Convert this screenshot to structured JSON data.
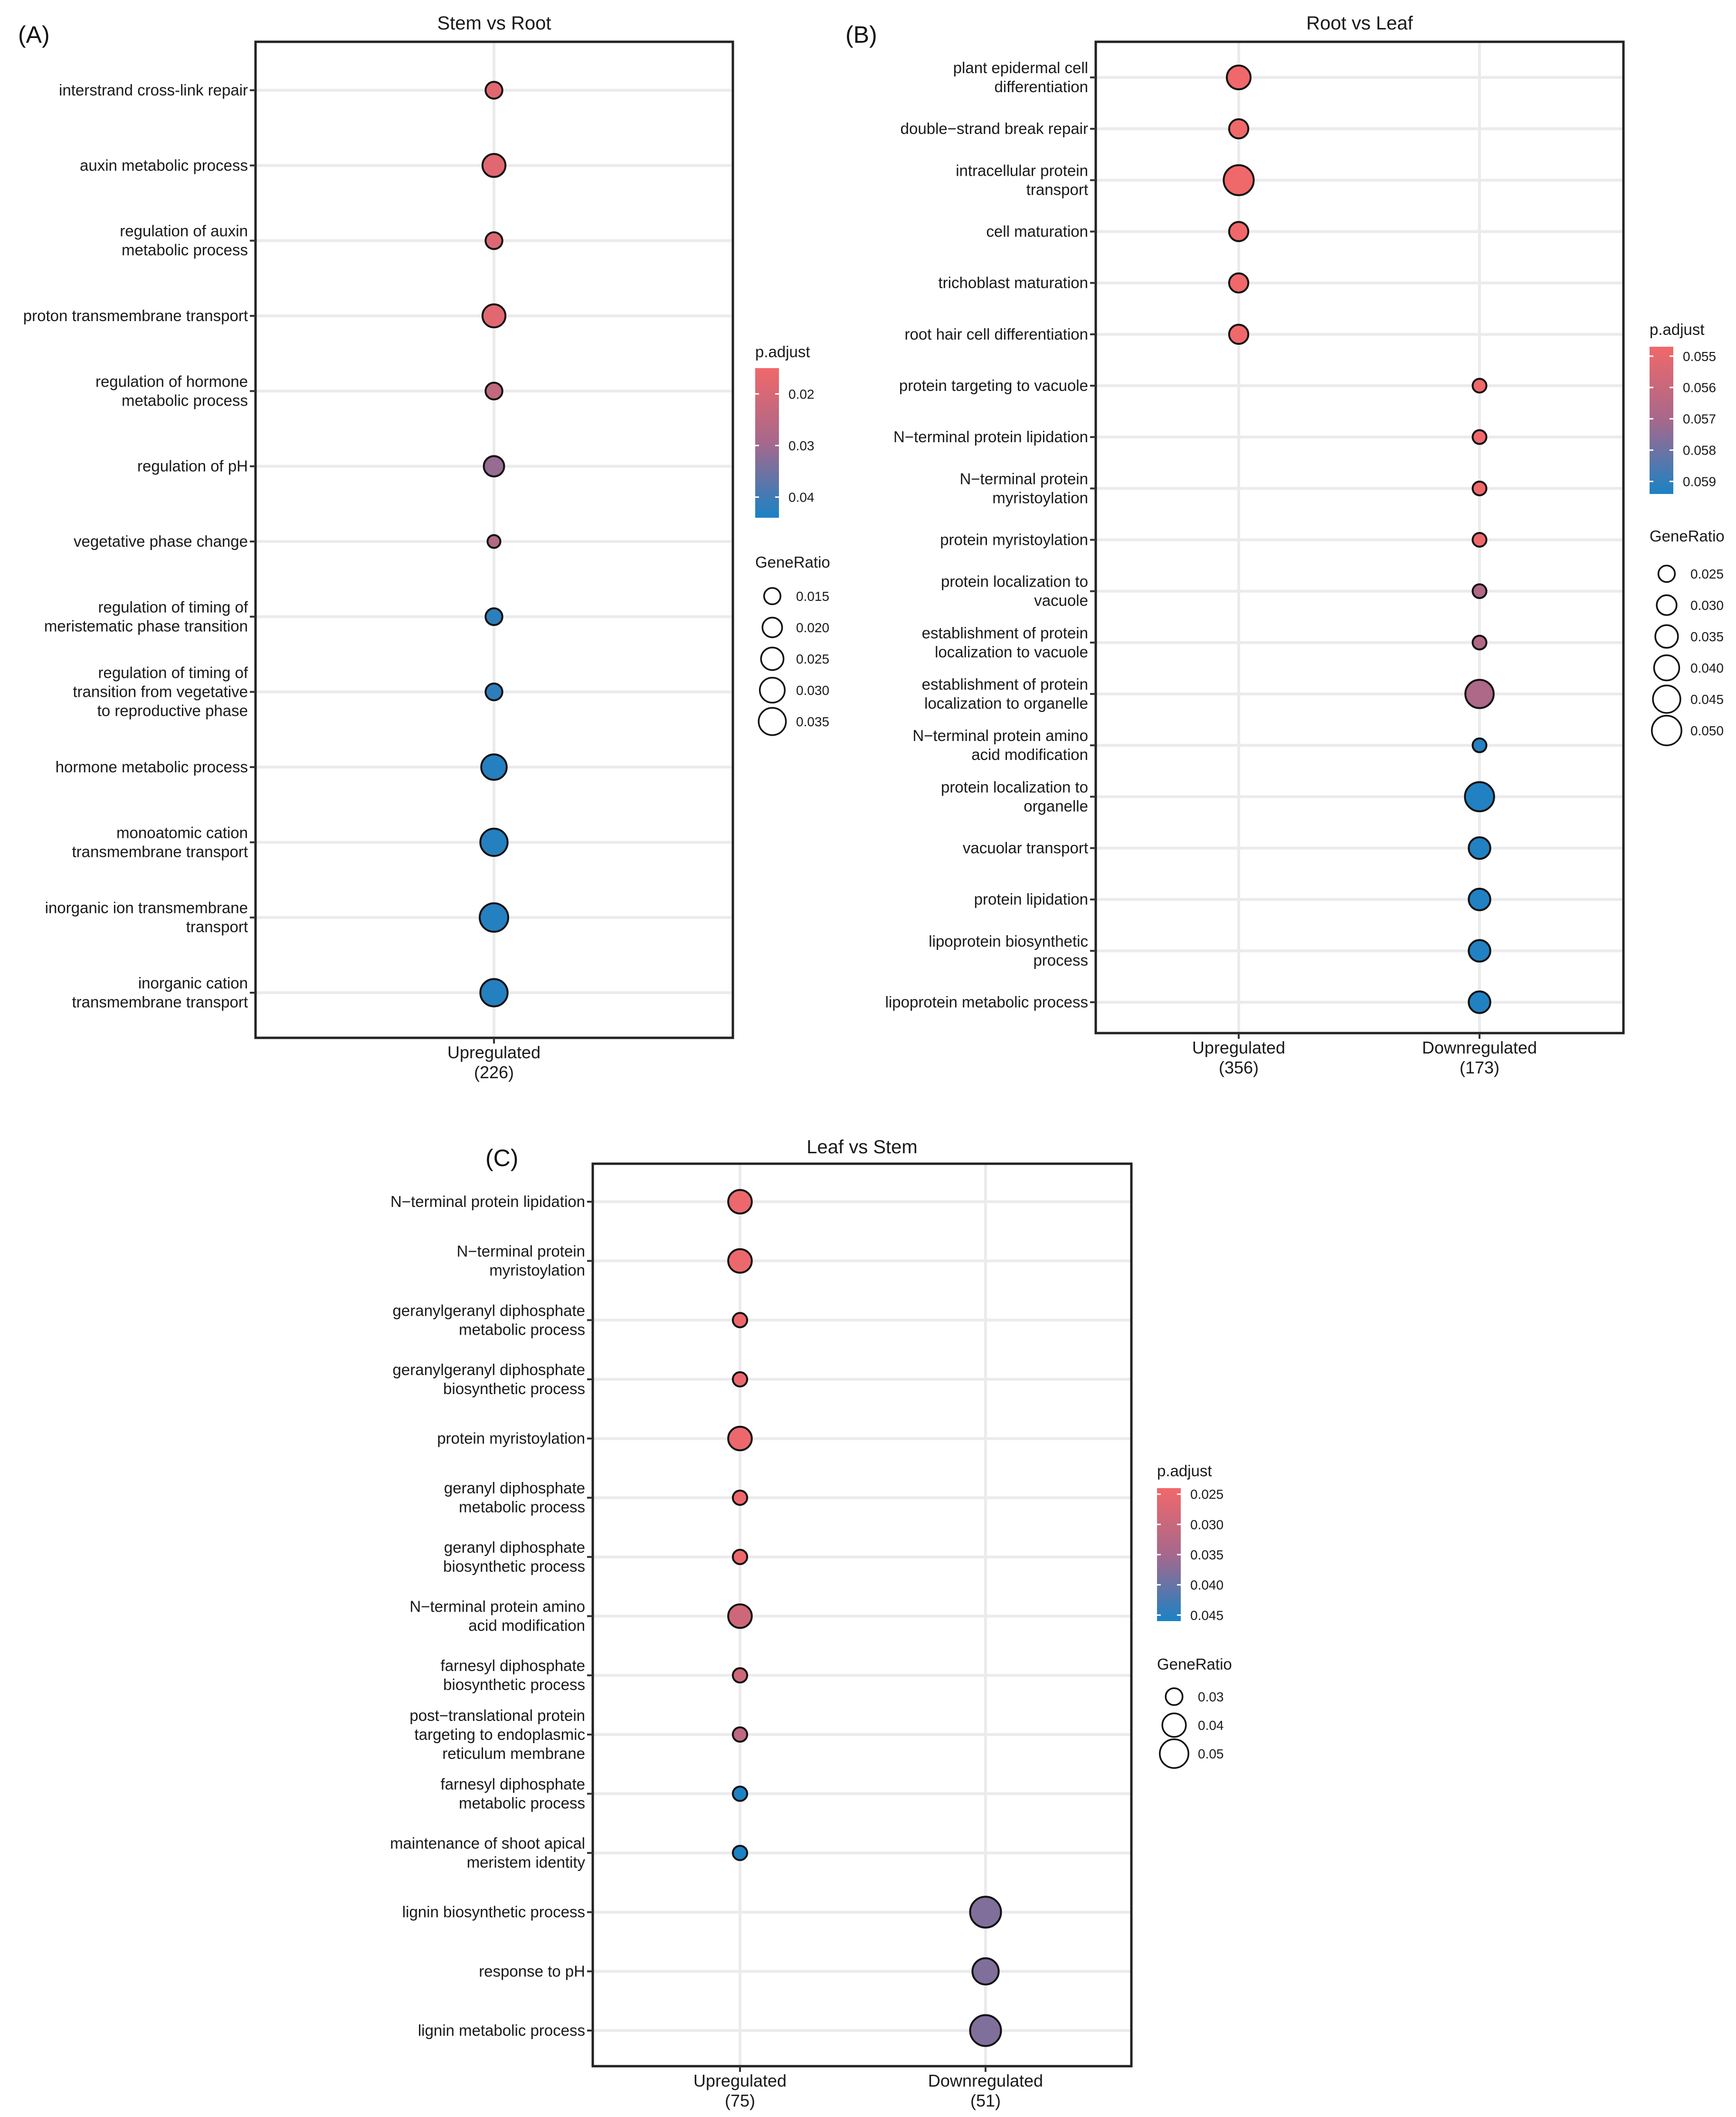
{
  "chart_data": [
    {
      "id": "A",
      "type": "scatter",
      "panel_label": "(A)",
      "title": "Stem vs Root",
      "groups": [
        {
          "name": "Upregulated",
          "count": "(226)"
        }
      ],
      "terms": [
        {
          "label": [
            "interstrand cross-link repair"
          ],
          "group": 0,
          "p_adjust": 0.018,
          "gene_ratio": 0.0155
        },
        {
          "label": [
            "auxin metabolic process"
          ],
          "group": 0,
          "p_adjust": 0.018,
          "gene_ratio": 0.026
        },
        {
          "label": [
            "regulation of auxin",
            "metabolic process"
          ],
          "group": 0,
          "p_adjust": 0.019,
          "gene_ratio": 0.0155
        },
        {
          "label": [
            "proton transmembrane transport"
          ],
          "group": 0,
          "p_adjust": 0.018,
          "gene_ratio": 0.026
        },
        {
          "label": [
            "regulation of hormone",
            "metabolic process"
          ],
          "group": 0,
          "p_adjust": 0.024,
          "gene_ratio": 0.0155
        },
        {
          "label": [
            "regulation of pH"
          ],
          "group": 0,
          "p_adjust": 0.031,
          "gene_ratio": 0.021
        },
        {
          "label": [
            "vegetative phase change"
          ],
          "group": 0,
          "p_adjust": 0.027,
          "gene_ratio": 0.0105
        },
        {
          "label": [
            "regulation of timing of",
            "meristematic phase transition"
          ],
          "group": 0,
          "p_adjust": 0.042,
          "gene_ratio": 0.0155
        },
        {
          "label": [
            "regulation of timing of",
            "transition from vegetative",
            "to reproductive phase"
          ],
          "group": 0,
          "p_adjust": 0.042,
          "gene_ratio": 0.0155
        },
        {
          "label": [
            "hormone metabolic process"
          ],
          "group": 0,
          "p_adjust": 0.043,
          "gene_ratio": 0.031
        },
        {
          "label": [
            "monoatomic cation",
            "transmembrane transport"
          ],
          "group": 0,
          "p_adjust": 0.043,
          "gene_ratio": 0.035
        },
        {
          "label": [
            "inorganic ion transmembrane",
            "transport"
          ],
          "group": 0,
          "p_adjust": 0.043,
          "gene_ratio": 0.038
        },
        {
          "label": [
            "inorganic cation",
            "transmembrane transport"
          ],
          "group": 0,
          "p_adjust": 0.043,
          "gene_ratio": 0.035
        }
      ],
      "color_scale": {
        "title": "p.adjust",
        "min": 0.015,
        "max": 0.044,
        "ticks": [
          0.02,
          0.03,
          0.04
        ],
        "tick_labels": [
          "0.02",
          "0.03",
          "0.04"
        ]
      },
      "size_scale": {
        "title": "GeneRatio",
        "min": 0.01,
        "max": 0.038,
        "ticks": [
          0.015,
          0.02,
          0.025,
          0.03,
          0.035
        ],
        "tick_labels": [
          "0.015",
          "0.020",
          "0.025",
          "0.030",
          "0.035"
        ]
      }
    },
    {
      "id": "B",
      "type": "scatter",
      "panel_label": "(B)",
      "title": "Root vs Leaf",
      "groups": [
        {
          "name": "Upregulated",
          "count": "(356)"
        },
        {
          "name": "Downregulated",
          "count": "(173)"
        }
      ],
      "terms": [
        {
          "label": [
            "plant epidermal cell",
            "differentiation"
          ],
          "group": 0,
          "p_adjust": 0.0547,
          "gene_ratio": 0.037
        },
        {
          "label": [
            "double−strand break repair"
          ],
          "group": 0,
          "p_adjust": 0.0547,
          "gene_ratio": 0.029
        },
        {
          "label": [
            "intracellular protein",
            "transport"
          ],
          "group": 0,
          "p_adjust": 0.0547,
          "gene_ratio": 0.051
        },
        {
          "label": [
            "cell maturation"
          ],
          "group": 0,
          "p_adjust": 0.0547,
          "gene_ratio": 0.029
        },
        {
          "label": [
            "trichoblast maturation"
          ],
          "group": 0,
          "p_adjust": 0.0547,
          "gene_ratio": 0.029
        },
        {
          "label": [
            "root hair cell differentiation"
          ],
          "group": 0,
          "p_adjust": 0.0547,
          "gene_ratio": 0.029
        },
        {
          "label": [
            "protein targeting to vacuole"
          ],
          "group": 1,
          "p_adjust": 0.0547,
          "gene_ratio": 0.0215
        },
        {
          "label": [
            "N−terminal protein lipidation"
          ],
          "group": 1,
          "p_adjust": 0.0547,
          "gene_ratio": 0.0215
        },
        {
          "label": [
            "N−terminal protein",
            "myristoylation"
          ],
          "group": 1,
          "p_adjust": 0.0547,
          "gene_ratio": 0.0215
        },
        {
          "label": [
            "protein myristoylation"
          ],
          "group": 1,
          "p_adjust": 0.0547,
          "gene_ratio": 0.0215
        },
        {
          "label": [
            "protein localization to",
            "vacuole"
          ],
          "group": 1,
          "p_adjust": 0.0567,
          "gene_ratio": 0.0215
        },
        {
          "label": [
            "establishment of protein",
            "localization to vacuole"
          ],
          "group": 1,
          "p_adjust": 0.0567,
          "gene_ratio": 0.0215
        },
        {
          "label": [
            "establishment of protein",
            "localization to organelle"
          ],
          "group": 1,
          "p_adjust": 0.0568,
          "gene_ratio": 0.047
        },
        {
          "label": [
            "N−terminal protein amino",
            "acid modification"
          ],
          "group": 1,
          "p_adjust": 0.0592,
          "gene_ratio": 0.0215
        },
        {
          "label": [
            "protein localization to",
            "organelle"
          ],
          "group": 1,
          "p_adjust": 0.0593,
          "gene_ratio": 0.049
        },
        {
          "label": [
            "vacuolar transport"
          ],
          "group": 1,
          "p_adjust": 0.0593,
          "gene_ratio": 0.033
        },
        {
          "label": [
            "protein lipidation"
          ],
          "group": 1,
          "p_adjust": 0.0593,
          "gene_ratio": 0.033
        },
        {
          "label": [
            "lipoprotein biosynthetic",
            "process"
          ],
          "group": 1,
          "p_adjust": 0.0593,
          "gene_ratio": 0.033
        },
        {
          "label": [
            "lipoprotein metabolic process"
          ],
          "group": 1,
          "p_adjust": 0.0593,
          "gene_ratio": 0.033
        }
      ],
      "color_scale": {
        "title": "p.adjust",
        "min": 0.0547,
        "max": 0.0594,
        "ticks": [
          0.055,
          0.056,
          0.057,
          0.058,
          0.059
        ],
        "tick_labels": [
          "0.055",
          "0.056",
          "0.057",
          "0.058",
          "0.059"
        ]
      },
      "size_scale": {
        "title": "GeneRatio",
        "min": 0.02,
        "max": 0.052,
        "ticks": [
          0.025,
          0.03,
          0.035,
          0.04,
          0.045,
          0.05
        ],
        "tick_labels": [
          "0.025",
          "0.030",
          "0.035",
          "0.040",
          "0.045",
          "0.050"
        ]
      }
    },
    {
      "id": "C",
      "type": "scatter",
      "panel_label": "(C)",
      "title": "Leaf vs Stem",
      "groups": [
        {
          "name": "Upregulated",
          "count": "(75)"
        },
        {
          "name": "Downregulated",
          "count": "(51)"
        }
      ],
      "terms": [
        {
          "label": [
            "N−terminal protein lipidation"
          ],
          "group": 0,
          "p_adjust": 0.0245,
          "gene_ratio": 0.04
        },
        {
          "label": [
            "N−terminal protein",
            "myristoylation"
          ],
          "group": 0,
          "p_adjust": 0.0245,
          "gene_ratio": 0.04
        },
        {
          "label": [
            "geranylgeranyl diphosphate",
            "metabolic process"
          ],
          "group": 0,
          "p_adjust": 0.0245,
          "gene_ratio": 0.027
        },
        {
          "label": [
            "geranylgeranyl diphosphate",
            "biosynthetic process"
          ],
          "group": 0,
          "p_adjust": 0.0245,
          "gene_ratio": 0.027
        },
        {
          "label": [
            "protein myristoylation"
          ],
          "group": 0,
          "p_adjust": 0.0245,
          "gene_ratio": 0.04
        },
        {
          "label": [
            "geranyl diphosphate",
            "metabolic process"
          ],
          "group": 0,
          "p_adjust": 0.0245,
          "gene_ratio": 0.027
        },
        {
          "label": [
            "geranyl diphosphate",
            "biosynthetic process"
          ],
          "group": 0,
          "p_adjust": 0.0245,
          "gene_ratio": 0.027
        },
        {
          "label": [
            "N−terminal protein amino",
            "acid modification"
          ],
          "group": 0,
          "p_adjust": 0.029,
          "gene_ratio": 0.04
        },
        {
          "label": [
            "farnesyl diphosphate",
            "biosynthetic process"
          ],
          "group": 0,
          "p_adjust": 0.029,
          "gene_ratio": 0.027
        },
        {
          "label": [
            "post−translational protein",
            "targeting to endoplasmic",
            "reticulum membrane"
          ],
          "group": 0,
          "p_adjust": 0.031,
          "gene_ratio": 0.027
        },
        {
          "label": [
            "farnesyl diphosphate",
            "metabolic process"
          ],
          "group": 0,
          "p_adjust": 0.046,
          "gene_ratio": 0.027
        },
        {
          "label": [
            "maintenance of shoot apical",
            "meristem identity"
          ],
          "group": 0,
          "p_adjust": 0.046,
          "gene_ratio": 0.027
        },
        {
          "label": [
            "lignin biosynthetic process"
          ],
          "group": 1,
          "p_adjust": 0.038,
          "gene_ratio": 0.055
        },
        {
          "label": [
            "response to pH"
          ],
          "group": 1,
          "p_adjust": 0.038,
          "gene_ratio": 0.045
        },
        {
          "label": [
            "lignin metabolic process"
          ],
          "group": 1,
          "p_adjust": 0.038,
          "gene_ratio": 0.055
        }
      ],
      "color_scale": {
        "title": "p.adjust",
        "min": 0.024,
        "max": 0.046,
        "ticks": [
          0.025,
          0.03,
          0.035,
          0.04,
          0.045
        ],
        "tick_labels": [
          "0.025",
          "0.030",
          "0.035",
          "0.040",
          "0.045"
        ]
      },
      "size_scale": {
        "title": "GeneRatio",
        "min": 0.025,
        "max": 0.056,
        "ticks": [
          0.03,
          0.04,
          0.05
        ],
        "tick_labels": [
          "0.03",
          "0.04",
          "0.05"
        ]
      }
    }
  ]
}
